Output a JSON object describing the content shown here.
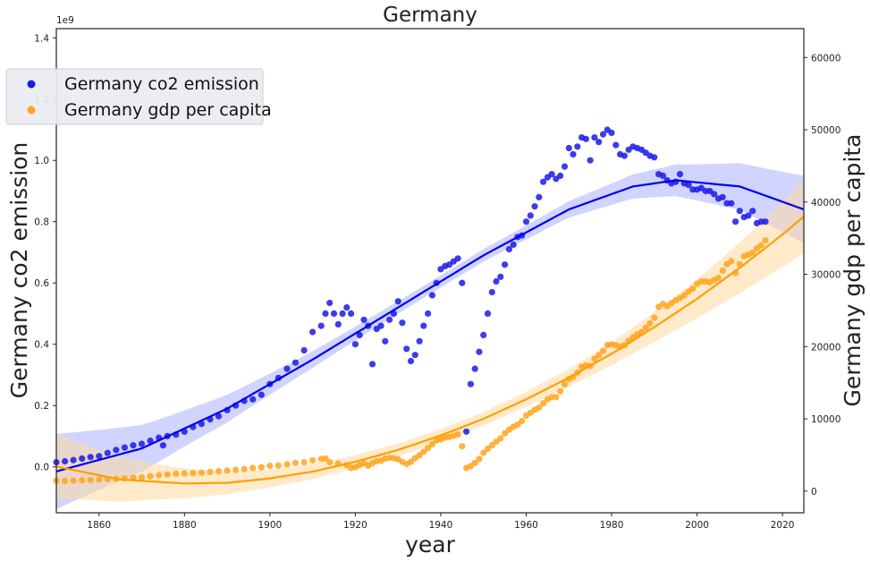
{
  "chart_data": {
    "type": "scatter",
    "title": "Germany",
    "xlabel": "year",
    "ylabel_left": "Germany co2 emission",
    "ylabel_right": "Germany gdp per capita",
    "left_axis_offset_label": "1e9",
    "xlim": [
      1850,
      2025
    ],
    "ylim_left": [
      -0.15,
      1.43
    ],
    "ylim_right": [
      -3000,
      64000
    ],
    "x_ticks": [
      1860,
      1880,
      1900,
      1920,
      1940,
      1960,
      1980,
      2000,
      2020
    ],
    "y_left_ticks": [
      "0.0",
      "0.2",
      "0.4",
      "0.6",
      "0.8",
      "1.0",
      "1.2",
      "1.4"
    ],
    "y_right_ticks": [
      "0",
      "10000",
      "20000",
      "30000",
      "40000",
      "50000",
      "60000"
    ],
    "legend_position": "upper-left",
    "colors": {
      "co2": "#1a1ae6",
      "co2_fit": "#0000ee",
      "gdp": "#ffa51f",
      "gdp_fit": "#ff9f00"
    },
    "series": [
      {
        "name": "Germany co2 emission",
        "axis": "left",
        "unit": "1e9",
        "points": [
          [
            1850,
            0.015
          ],
          [
            1852,
            0.018
          ],
          [
            1854,
            0.022
          ],
          [
            1856,
            0.027
          ],
          [
            1858,
            0.032
          ],
          [
            1860,
            0.035
          ],
          [
            1862,
            0.045
          ],
          [
            1864,
            0.055
          ],
          [
            1866,
            0.063
          ],
          [
            1868,
            0.07
          ],
          [
            1870,
            0.075
          ],
          [
            1872,
            0.085
          ],
          [
            1874,
            0.095
          ],
          [
            1875,
            0.07
          ],
          [
            1876,
            0.1
          ],
          [
            1878,
            0.105
          ],
          [
            1880,
            0.115
          ],
          [
            1882,
            0.13
          ],
          [
            1884,
            0.14
          ],
          [
            1886,
            0.155
          ],
          [
            1888,
            0.165
          ],
          [
            1890,
            0.185
          ],
          [
            1892,
            0.2
          ],
          [
            1894,
            0.215
          ],
          [
            1896,
            0.22
          ],
          [
            1898,
            0.235
          ],
          [
            1900,
            0.27
          ],
          [
            1902,
            0.29
          ],
          [
            1904,
            0.32
          ],
          [
            1906,
            0.34
          ],
          [
            1908,
            0.38
          ],
          [
            1910,
            0.44
          ],
          [
            1912,
            0.46
          ],
          [
            1913,
            0.5
          ],
          [
            1914,
            0.535
          ],
          [
            1915,
            0.5
          ],
          [
            1916,
            0.465
          ],
          [
            1917,
            0.5
          ],
          [
            1918,
            0.52
          ],
          [
            1919,
            0.5
          ],
          [
            1920,
            0.4
          ],
          [
            1921,
            0.43
          ],
          [
            1922,
            0.48
          ],
          [
            1923,
            0.46
          ],
          [
            1924,
            0.335
          ],
          [
            1925,
            0.45
          ],
          [
            1926,
            0.46
          ],
          [
            1927,
            0.41
          ],
          [
            1928,
            0.48
          ],
          [
            1929,
            0.5
          ],
          [
            1930,
            0.54
          ],
          [
            1931,
            0.47
          ],
          [
            1932,
            0.385
          ],
          [
            1933,
            0.345
          ],
          [
            1934,
            0.365
          ],
          [
            1935,
            0.41
          ],
          [
            1936,
            0.46
          ],
          [
            1937,
            0.5
          ],
          [
            1938,
            0.56
          ],
          [
            1939,
            0.6
          ],
          [
            1940,
            0.645
          ],
          [
            1941,
            0.655
          ],
          [
            1942,
            0.66
          ],
          [
            1943,
            0.67
          ],
          [
            1944,
            0.68
          ],
          [
            1945,
            0.6
          ],
          [
            1946,
            0.115
          ],
          [
            1947,
            0.27
          ],
          [
            1948,
            0.32
          ],
          [
            1949,
            0.375
          ],
          [
            1950,
            0.43
          ],
          [
            1951,
            0.5
          ],
          [
            1952,
            0.57
          ],
          [
            1953,
            0.605
          ],
          [
            1954,
            0.62
          ],
          [
            1955,
            0.66
          ],
          [
            1956,
            0.71
          ],
          [
            1957,
            0.725
          ],
          [
            1958,
            0.75
          ],
          [
            1959,
            0.755
          ],
          [
            1960,
            0.8
          ],
          [
            1961,
            0.82
          ],
          [
            1962,
            0.85
          ],
          [
            1963,
            0.88
          ],
          [
            1964,
            0.93
          ],
          [
            1965,
            0.945
          ],
          [
            1966,
            0.955
          ],
          [
            1967,
            0.94
          ],
          [
            1968,
            0.95
          ],
          [
            1969,
            0.98
          ],
          [
            1970,
            1.04
          ],
          [
            1971,
            1.02
          ],
          [
            1972,
            1.045
          ],
          [
            1973,
            1.075
          ],
          [
            1974,
            1.07
          ],
          [
            1975,
            1.0
          ],
          [
            1976,
            1.075
          ],
          [
            1977,
            1.06
          ],
          [
            1978,
            1.085
          ],
          [
            1979,
            1.1
          ],
          [
            1980,
            1.09
          ],
          [
            1981,
            1.05
          ],
          [
            1982,
            1.02
          ],
          [
            1983,
            1.015
          ],
          [
            1984,
            1.035
          ],
          [
            1985,
            1.045
          ],
          [
            1986,
            1.04
          ],
          [
            1987,
            1.035
          ],
          [
            1988,
            1.025
          ],
          [
            1989,
            1.015
          ],
          [
            1990,
            1.01
          ],
          [
            1991,
            0.955
          ],
          [
            1992,
            0.95
          ],
          [
            1993,
            0.935
          ],
          [
            1994,
            0.925
          ],
          [
            1995,
            0.93
          ],
          [
            1996,
            0.955
          ],
          [
            1997,
            0.925
          ],
          [
            1998,
            0.92
          ],
          [
            1999,
            0.905
          ],
          [
            2000,
            0.905
          ],
          [
            2001,
            0.91
          ],
          [
            2002,
            0.9
          ],
          [
            2003,
            0.9
          ],
          [
            2004,
            0.89
          ],
          [
            2005,
            0.875
          ],
          [
            2006,
            0.88
          ],
          [
            2007,
            0.86
          ],
          [
            2008,
            0.86
          ],
          [
            2009,
            0.8
          ],
          [
            2010,
            0.835
          ],
          [
            2011,
            0.815
          ],
          [
            2012,
            0.82
          ],
          [
            2013,
            0.835
          ],
          [
            2014,
            0.795
          ],
          [
            2015,
            0.8
          ],
          [
            2016,
            0.8
          ]
        ],
        "fit_curve": [
          [
            1850,
            -0.015
          ],
          [
            1870,
            0.06
          ],
          [
            1890,
            0.19
          ],
          [
            1910,
            0.35
          ],
          [
            1930,
            0.52
          ],
          [
            1950,
            0.69
          ],
          [
            1970,
            0.84
          ],
          [
            1985,
            0.915
          ],
          [
            1995,
            0.935
          ],
          [
            2010,
            0.915
          ],
          [
            2025,
            0.84
          ]
        ]
      },
      {
        "name": "Germany gdp per capita",
        "axis": "right",
        "points": [
          [
            1850,
            1450
          ],
          [
            1852,
            1400
          ],
          [
            1854,
            1450
          ],
          [
            1856,
            1500
          ],
          [
            1858,
            1550
          ],
          [
            1860,
            1600
          ],
          [
            1862,
            1650
          ],
          [
            1864,
            1700
          ],
          [
            1866,
            1750
          ],
          [
            1868,
            1850
          ],
          [
            1870,
            1900
          ],
          [
            1872,
            2050
          ],
          [
            1874,
            2200
          ],
          [
            1876,
            2300
          ],
          [
            1878,
            2400
          ],
          [
            1880,
            2450
          ],
          [
            1882,
            2500
          ],
          [
            1884,
            2550
          ],
          [
            1886,
            2650
          ],
          [
            1888,
            2750
          ],
          [
            1890,
            2850
          ],
          [
            1892,
            2950
          ],
          [
            1894,
            3050
          ],
          [
            1896,
            3200
          ],
          [
            1898,
            3300
          ],
          [
            1900,
            3500
          ],
          [
            1902,
            3550
          ],
          [
            1904,
            3700
          ],
          [
            1906,
            3900
          ],
          [
            1908,
            4000
          ],
          [
            1910,
            4250
          ],
          [
            1912,
            4450
          ],
          [
            1913,
            4500
          ],
          [
            1914,
            4000
          ],
          [
            1916,
            3800
          ],
          [
            1918,
            3600
          ],
          [
            1919,
            3200
          ],
          [
            1920,
            3300
          ],
          [
            1921,
            3600
          ],
          [
            1922,
            3850
          ],
          [
            1923,
            3500
          ],
          [
            1924,
            3850
          ],
          [
            1925,
            4150
          ],
          [
            1926,
            4200
          ],
          [
            1927,
            4500
          ],
          [
            1928,
            4600
          ],
          [
            1929,
            4550
          ],
          [
            1930,
            4400
          ],
          [
            1931,
            4050
          ],
          [
            1932,
            3750
          ],
          [
            1933,
            4050
          ],
          [
            1934,
            4550
          ],
          [
            1935,
            4950
          ],
          [
            1936,
            5450
          ],
          [
            1937,
            5950
          ],
          [
            1938,
            6500
          ],
          [
            1939,
            7050
          ],
          [
            1940,
            7150
          ],
          [
            1941,
            7400
          ],
          [
            1942,
            7500
          ],
          [
            1943,
            7650
          ],
          [
            1944,
            7850
          ],
          [
            1945,
            6200
          ],
          [
            1946,
            3200
          ],
          [
            1947,
            3450
          ],
          [
            1948,
            3900
          ],
          [
            1949,
            4450
          ],
          [
            1950,
            5300
          ],
          [
            1951,
            5850
          ],
          [
            1952,
            6350
          ],
          [
            1953,
            6850
          ],
          [
            1954,
            7300
          ],
          [
            1955,
            8000
          ],
          [
            1956,
            8500
          ],
          [
            1957,
            8900
          ],
          [
            1958,
            9200
          ],
          [
            1959,
            9700
          ],
          [
            1960,
            10450
          ],
          [
            1961,
            10850
          ],
          [
            1962,
            11250
          ],
          [
            1963,
            11550
          ],
          [
            1964,
            12150
          ],
          [
            1965,
            12700
          ],
          [
            1966,
            13000
          ],
          [
            1967,
            13000
          ],
          [
            1968,
            13800
          ],
          [
            1969,
            14800
          ],
          [
            1970,
            15500
          ],
          [
            1971,
            15800
          ],
          [
            1972,
            16400
          ],
          [
            1973,
            17200
          ],
          [
            1974,
            17400
          ],
          [
            1975,
            17300
          ],
          [
            1976,
            18300
          ],
          [
            1977,
            18800
          ],
          [
            1978,
            19400
          ],
          [
            1979,
            20200
          ],
          [
            1980,
            20300
          ],
          [
            1981,
            20200
          ],
          [
            1982,
            20000
          ],
          [
            1983,
            20200
          ],
          [
            1984,
            20800
          ],
          [
            1985,
            21300
          ],
          [
            1986,
            21700
          ],
          [
            1987,
            22000
          ],
          [
            1988,
            22600
          ],
          [
            1989,
            23200
          ],
          [
            1990,
            24000
          ],
          [
            1991,
            25500
          ],
          [
            1992,
            25900
          ],
          [
            1993,
            25600
          ],
          [
            1994,
            26000
          ],
          [
            1995,
            26400
          ],
          [
            1996,
            26700
          ],
          [
            1997,
            27100
          ],
          [
            1998,
            27600
          ],
          [
            1999,
            28000
          ],
          [
            2000,
            28700
          ],
          [
            2001,
            29000
          ],
          [
            2002,
            29000
          ],
          [
            2003,
            28900
          ],
          [
            2004,
            29200
          ],
          [
            2005,
            29500
          ],
          [
            2006,
            30500
          ],
          [
            2007,
            31400
          ],
          [
            2008,
            31800
          ],
          [
            2009,
            30200
          ],
          [
            2010,
            31400
          ],
          [
            2011,
            32500
          ],
          [
            2012,
            32700
          ],
          [
            2013,
            33000
          ],
          [
            2014,
            33600
          ],
          [
            2015,
            34000
          ],
          [
            2016,
            34700
          ]
        ],
        "fit_curve": [
          [
            1850,
            3400
          ],
          [
            1865,
            1600
          ],
          [
            1880,
            1050
          ],
          [
            1890,
            1150
          ],
          [
            1900,
            1750
          ],
          [
            1910,
            2700
          ],
          [
            1920,
            4050
          ],
          [
            1930,
            5700
          ],
          [
            1940,
            7700
          ],
          [
            1950,
            10000
          ],
          [
            1960,
            12700
          ],
          [
            1970,
            15700
          ],
          [
            1980,
            19000
          ],
          [
            1990,
            22700
          ],
          [
            2000,
            26600
          ],
          [
            2010,
            30900
          ],
          [
            2020,
            35500
          ],
          [
            2025,
            38000
          ]
        ]
      }
    ]
  }
}
